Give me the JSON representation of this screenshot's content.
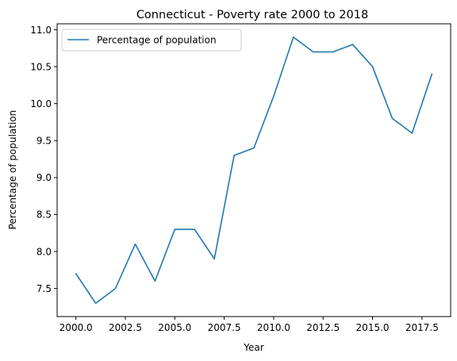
{
  "chart_data": {
    "type": "line",
    "title": "Connecticut - Poverty rate 2000 to 2018",
    "xlabel": "Year",
    "ylabel": "Percentage of population",
    "xlim": [
      1999.05,
      2018.95
    ],
    "ylim": [
      7.12,
      11.08
    ],
    "xticks": [
      2000.0,
      2002.5,
      2005.0,
      2007.5,
      2010.0,
      2012.5,
      2015.0,
      2017.5
    ],
    "xtick_labels": [
      "2000.0",
      "2002.5",
      "2005.0",
      "2007.5",
      "2010.0",
      "2012.5",
      "2015.0",
      "2017.5"
    ],
    "yticks": [
      7.5,
      8.0,
      8.5,
      9.0,
      9.5,
      10.0,
      10.5,
      11.0
    ],
    "ytick_labels": [
      "7.5",
      "8.0",
      "8.5",
      "9.0",
      "9.5",
      "10.0",
      "10.5",
      "11.0"
    ],
    "grid": false,
    "legend": "top-left",
    "series": [
      {
        "name": "Percentage of population",
        "color": "#1f77b4",
        "x": [
          2000,
          2001,
          2002,
          2003,
          2004,
          2005,
          2006,
          2007,
          2008,
          2009,
          2010,
          2011,
          2012,
          2013,
          2014,
          2015,
          2016,
          2017,
          2018
        ],
        "y": [
          7.7,
          7.3,
          7.5,
          8.1,
          7.6,
          8.3,
          8.3,
          7.9,
          9.3,
          9.4,
          10.1,
          10.9,
          10.7,
          10.7,
          10.8,
          10.5,
          9.8,
          9.6,
          10.4
        ]
      }
    ]
  }
}
